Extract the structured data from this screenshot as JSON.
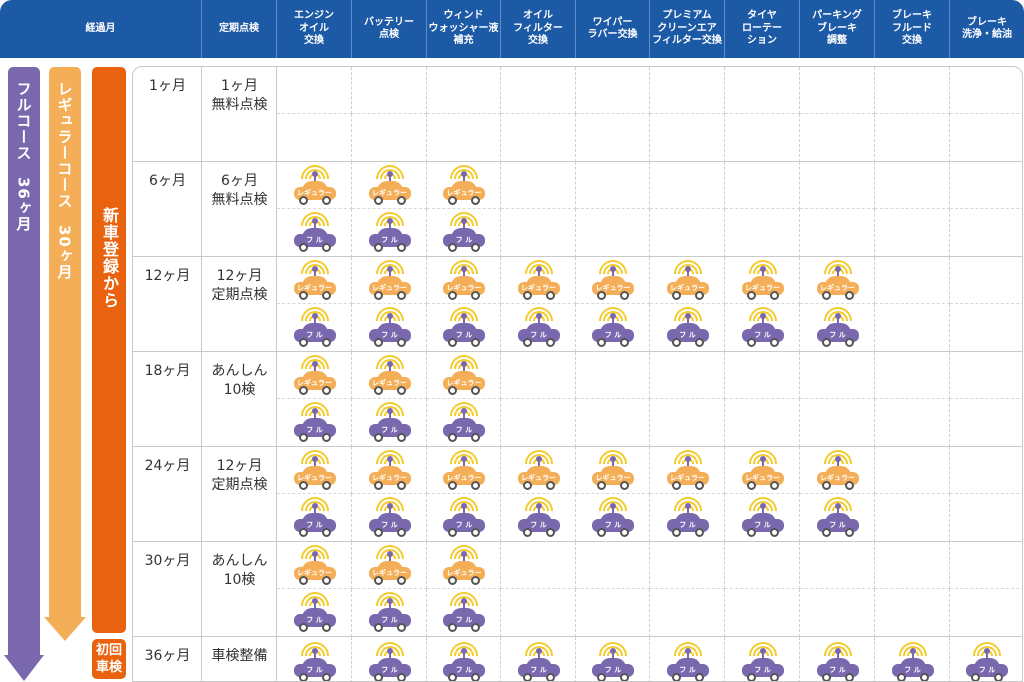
{
  "header": {
    "columns": [
      "経過月",
      "定期点検",
      "エンジン\nオイル\n交換",
      "バッテリー\n点検",
      "ウィンド\nウォッシャー液\n補充",
      "オイル\nフィルター\n交換",
      "ワイパー\nラバー交換",
      "プレミアム\nクリーンエア\nフィルター交換",
      "タイヤ\nローテー\nション",
      "パーキング\nブレーキ\n調整",
      "ブレーキ\nフルード\n交換",
      "ブレーキ\n洗浄・給油"
    ]
  },
  "courses": {
    "full": "フルコース　36ヶ月",
    "regular": "レギュラーコース　30ヶ月",
    "new_registration": "新車登録から",
    "first_inspection": [
      "初回",
      "車検"
    ]
  },
  "car_labels": {
    "regular": "レギュラー",
    "full": "フ ル"
  },
  "rows": [
    {
      "month": "1ヶ月",
      "inspection": "1ヶ月\n無料点検",
      "regular": [],
      "full": []
    },
    {
      "month": "6ヶ月",
      "inspection": "6ヶ月\n無料点検",
      "regular": [
        1,
        2,
        3
      ],
      "full": [
        1,
        2,
        3
      ]
    },
    {
      "month": "12ヶ月",
      "inspection": "12ヶ月\n定期点検",
      "regular": [
        1,
        2,
        3,
        4,
        5,
        6,
        7,
        8
      ],
      "full": [
        1,
        2,
        3,
        4,
        5,
        6,
        7,
        8
      ]
    },
    {
      "month": "18ヶ月",
      "inspection": "あんしん\n10検",
      "regular": [
        1,
        2,
        3
      ],
      "full": [
        1,
        2,
        3
      ]
    },
    {
      "month": "24ヶ月",
      "inspection": "12ヶ月\n定期点検",
      "regular": [
        1,
        2,
        3,
        4,
        5,
        6,
        7,
        8
      ],
      "full": [
        1,
        2,
        3,
        4,
        5,
        6,
        7,
        8
      ]
    },
    {
      "month": "30ヶ月",
      "inspection": "あんしん\n10検",
      "regular": [
        1,
        2,
        3
      ],
      "full": [
        1,
        2,
        3
      ]
    },
    {
      "month": "36ヶ月",
      "inspection": "車検整備",
      "regular": [],
      "full": [
        1,
        2,
        3,
        4,
        5,
        6,
        7,
        8,
        9,
        10
      ]
    }
  ],
  "colors": {
    "header": "#1d5aa6",
    "full": "#7a68ae",
    "regular": "#f4ae58",
    "new": "#e8620f",
    "signal": "#f4cb2c"
  }
}
